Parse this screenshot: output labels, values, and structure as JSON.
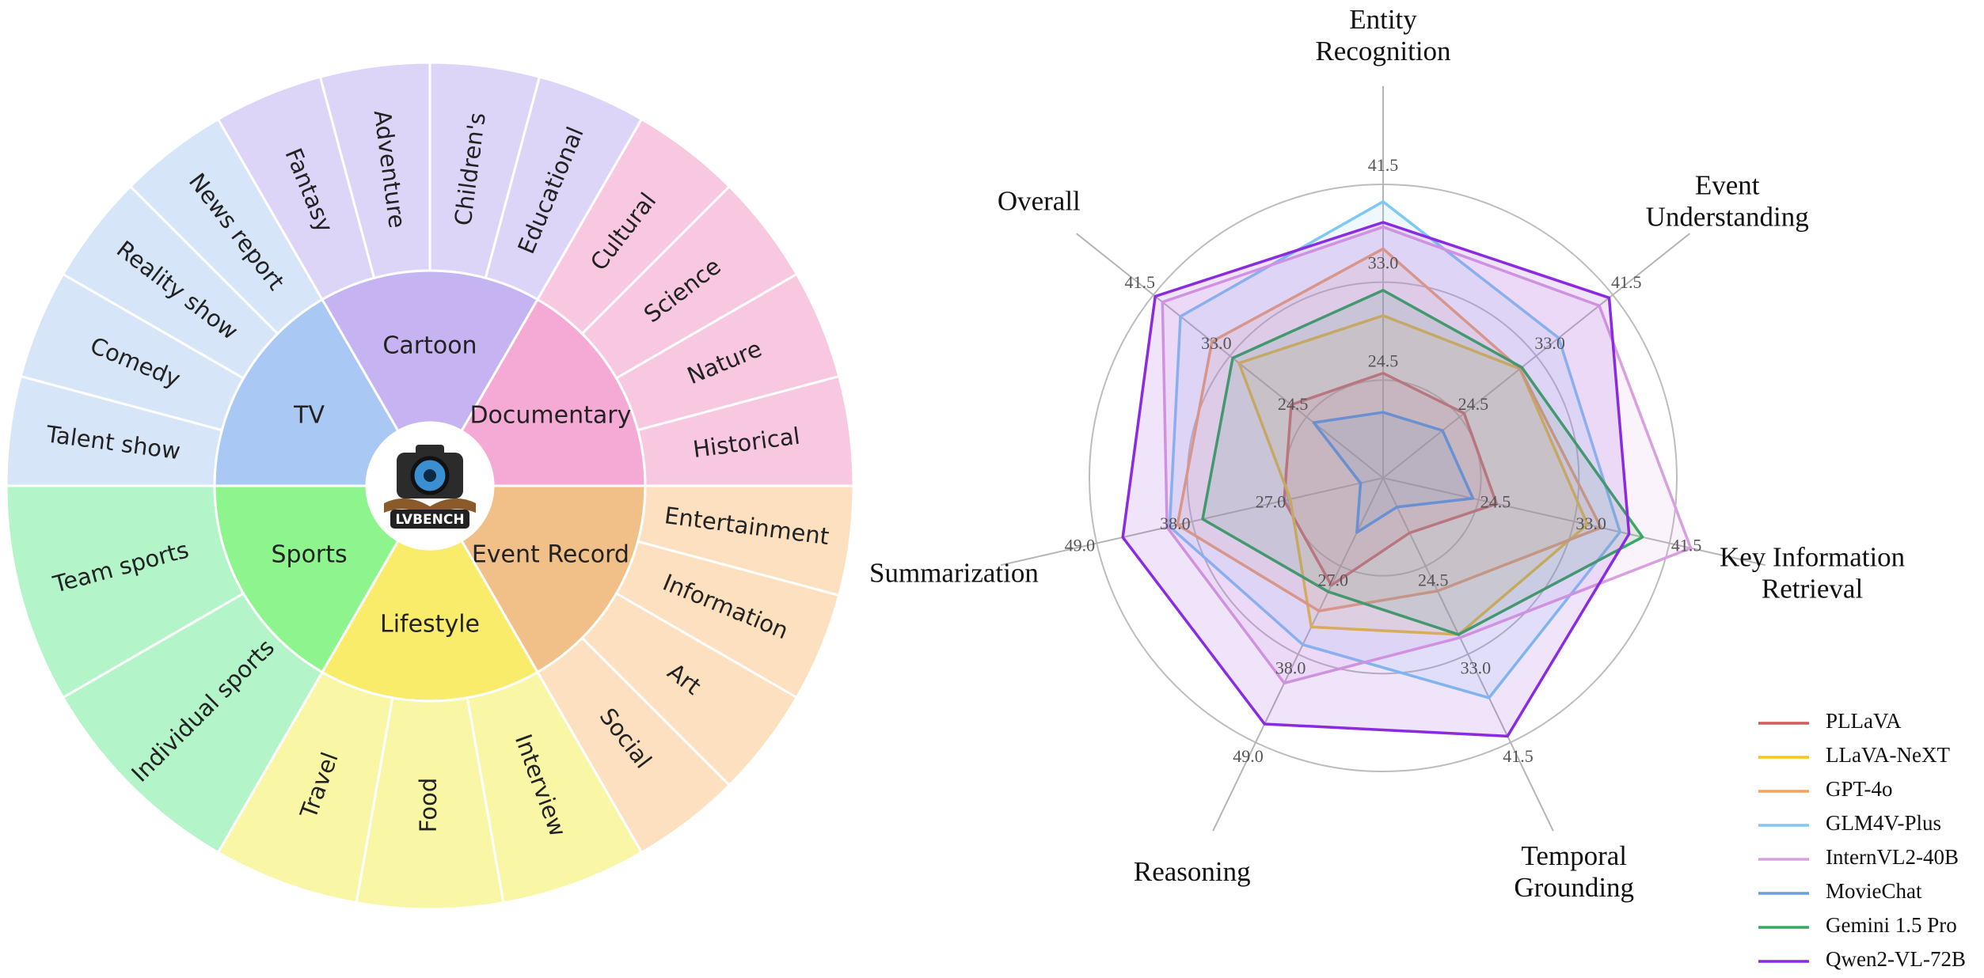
{
  "chart_data": [
    {
      "type": "sunburst",
      "logo": "LVBENCH",
      "categories": [
        {
          "name": "TV",
          "color": "#a9c8f3",
          "child_color": "#d6e6f8",
          "children": [
            "Talent show",
            "Comedy",
            "Reality show",
            "News report"
          ]
        },
        {
          "name": "Cartoon",
          "color": "#c6b4f2",
          "child_color": "#ddd5f7",
          "children": [
            "Fantasy",
            "Adventure",
            "Children's",
            "Educational"
          ]
        },
        {
          "name": "Documentary",
          "color": "#f5aad6",
          "child_color": "#f7c8df",
          "children": [
            "Cultural",
            "Science",
            "Nature",
            "Historical"
          ]
        },
        {
          "name": "Event Record",
          "color": "#f0c088",
          "child_color": "#fde0c0",
          "children": [
            "Entertainment",
            "Information",
            "Art",
            "Social"
          ]
        },
        {
          "name": "Lifestyle",
          "color": "#f8ec6a",
          "child_color": "#f9f7a5",
          "children": [
            "Interview",
            "Food",
            "Travel"
          ]
        },
        {
          "name": "Sports",
          "color": "#8ef58e",
          "child_color": "#b3f5c9",
          "children": [
            "Individual sports",
            "Team sports"
          ]
        }
      ]
    },
    {
      "type": "radar",
      "axes": [
        {
          "name": "Entity Recognition",
          "ylim": [
            16,
            41.5
          ],
          "yticks": [
            24.5,
            {
              "value": 33,
              "label": "33.0"
            },
            41.5
          ]
        },
        {
          "name": "Event Understanding",
          "ylim": [
            16,
            41.5
          ],
          "yticks": [
            24.5,
            {
              "value": 33,
              "label": "33.0"
            },
            41.5
          ]
        },
        {
          "name": "Key Information Retrieval",
          "ylim": [
            16,
            41.5
          ],
          "yticks": [
            24.5,
            {
              "value": 33,
              "label": "33.0"
            },
            41.5
          ]
        },
        {
          "name": "Temporal Grounding",
          "ylim": [
            16,
            41.5
          ],
          "yticks": [
            24.5,
            {
              "value": 33,
              "label": "33.0"
            },
            41.5
          ]
        },
        {
          "name": "Reasoning",
          "ylim": [
            16,
            49
          ],
          "yticks": [
            {
              "value": 27,
              "label": "27.0"
            },
            {
              "value": 38,
              "label": "38.0"
            },
            {
              "value": 49,
              "label": "49.0"
            }
          ]
        },
        {
          "name": "Summarization",
          "ylim": [
            16,
            49
          ],
          "yticks": [
            {
              "value": 27,
              "label": "27.0"
            },
            {
              "value": 38,
              "label": "38.0"
            },
            {
              "value": 49,
              "label": "49.0"
            }
          ]
        },
        {
          "name": "Overall",
          "ylim": [
            16,
            41.5
          ],
          "yticks": [
            24.5,
            {
              "value": 33,
              "label": "33.0"
            },
            41.5
          ]
        }
      ],
      "series": [
        {
          "name": "PLLaVA",
          "color": "#d9575a",
          "values": [
            25.1,
            25.0,
            26.1,
            21.3,
            29.4,
            27.4,
            26.2
          ]
        },
        {
          "name": "LLaVA-NeXT",
          "color": "#f5c518",
          "values": [
            30.1,
            31.2,
            34.2,
            31.1,
            34.6,
            26.7,
            32.0
          ]
        },
        {
          "name": "GPT-4o",
          "color": "#f5a25a",
          "values": [
            35.9,
            31.2,
            35.4,
            26.9,
            32.6,
            39.7,
            35.0
          ]
        },
        {
          "name": "GLM4V-Plus",
          "color": "#7ec8f5",
          "values": [
            40.0,
            35.5,
            37.1,
            37.2,
            36.8,
            40.6,
            38.5
          ]
        },
        {
          "name": "InternVL2-40B",
          "color": "#d9a0e0",
          "values": [
            37.8,
            40.0,
            43.4,
            31.4,
            41.6,
            40.9,
            40.5
          ]
        },
        {
          "name": "MovieChat",
          "color": "#6a9ee0",
          "values": [
            21.7,
            22.6,
            24.0,
            18.8,
            22.8,
            18.6,
            23.7
          ]
        },
        {
          "name": "Gemini 1.5 Pro",
          "color": "#3aa860",
          "values": [
            32.3,
            31.4,
            39.1,
            31.1,
            30.2,
            36.8,
            32.7
          ]
        },
        {
          "name": "Qwen2-VL-72B",
          "color": "#8a2be2",
          "values": [
            38.2,
            41.1,
            37.9,
            40.9,
            46.7,
            46.0,
            41.3
          ]
        }
      ]
    }
  ]
}
